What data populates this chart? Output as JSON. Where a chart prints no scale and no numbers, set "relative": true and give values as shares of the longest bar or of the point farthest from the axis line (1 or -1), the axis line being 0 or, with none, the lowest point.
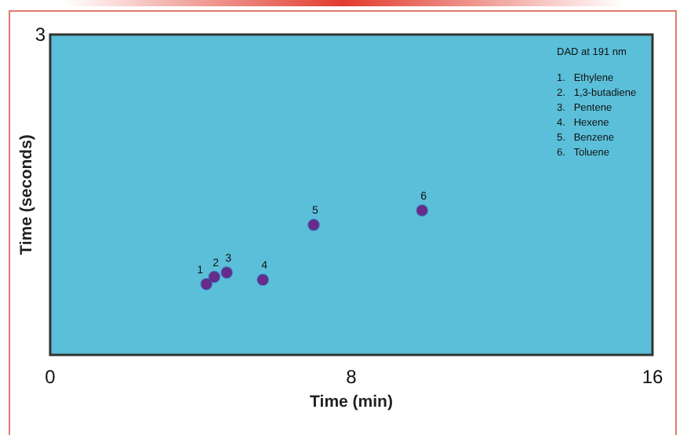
{
  "chart_data": {
    "type": "scatter",
    "xlabel": "Time (min)",
    "ylabel": "Time (seconds)",
    "relative": true,
    "xlim": [
      0,
      16
    ],
    "xticks": [
      0,
      8,
      16
    ],
    "x": [
      4.15,
      4.36,
      4.69,
      5.65,
      7.0,
      9.88
    ],
    "series": [
      {
        "color": "#6a2a8a",
        "values": [
          0.49,
          0.54,
          0.57,
          0.52,
          0.9,
          1
        ]
      }
    ],
    "annotations": [
      "3",
      {
        "text": "1",
        "x": 4.15,
        "y": 0.49
      },
      {
        "text": "2",
        "x": 4.36,
        "y": 0.54
      },
      {
        "text": "3",
        "x": 4.69,
        "y": 0.57
      },
      {
        "text": "4",
        "x": 5.65,
        "y": 0.52
      },
      {
        "text": "5",
        "x": 7.0,
        "y": 0.9
      },
      {
        "text": "6",
        "x": 9.88,
        "y": 1
      },
      "DAD at 191 nm",
      "1.   Ethylene",
      "2.   1,3-butadiene",
      "3.   Pentene",
      "4.   Hexene",
      "5.   Benzene",
      "6.   Toluene"
    ]
  }
}
